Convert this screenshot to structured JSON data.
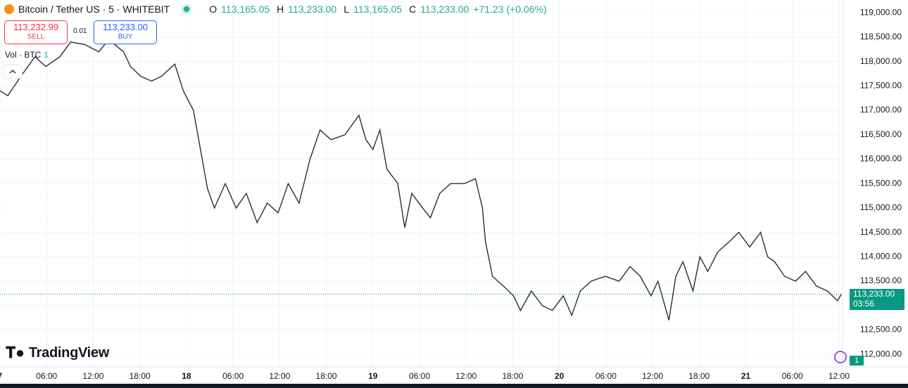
{
  "header": {
    "symbol": "Bitcoin / Tether US · 5 · WHITEBIT",
    "o_label": "O",
    "open": "113,165.05",
    "h_label": "H",
    "high": "113,233.00",
    "l_label": "L",
    "low": "113,165.05",
    "c_label": "C",
    "close": "113,233.00",
    "change": "+71.23 (+0.06%)"
  },
  "trade": {
    "sell_price": "113,232.99",
    "sell": "SELL",
    "spread": "0.01",
    "buy_price": "113,233.00",
    "buy": "BUY"
  },
  "volume": {
    "label": "Vol · BTC",
    "value": "1"
  },
  "brand": "TradingView",
  "badge": "1",
  "chart_data": {
    "type": "line",
    "x": [
      0,
      1,
      2.7,
      4.5,
      5.9,
      7.7,
      9.1,
      10.9,
      12.7,
      14,
      15.9,
      16.8,
      18.1,
      19.5,
      20.8,
      22.5,
      23.6,
      24.9,
      25.8,
      26.7,
      27.6,
      29,
      30.4,
      31.7,
      33.1,
      34.4,
      35.8,
      37.1,
      38.5,
      39.9,
      41.2,
      42.6,
      44.4,
      45.3,
      46.2,
      47.1,
      48,
      48.9,
      49.8,
      51.2,
      52.1,
      53,
      54.4,
      55.4,
      56.6,
      58,
      59.8,
      61.2,
      62.1,
      62.5,
      63.4,
      64.8,
      66.1,
      67,
      68.4,
      69.8,
      71.1,
      72.5,
      73.6,
      74.7,
      76.1,
      77.9,
      79.7,
      81.1,
      82.4,
      83.8,
      84.7,
      86.1,
      87,
      87.9,
      89.2,
      90.1,
      91.1,
      92.4,
      93.8,
      95.1,
      96.5,
      97.9,
      98.8,
      99.7,
      101,
      102.4,
      103.7,
      105.1,
      106.5,
      107.8,
      108.3
    ],
    "series": [
      {
        "color": "#2a2e39",
        "values": [
          117400,
          117300,
          117700,
          118100,
          117900,
          118100,
          118400,
          118350,
          118200,
          118450,
          118200,
          117900,
          117700,
          117600,
          117700,
          117950,
          117400,
          117000,
          116200,
          115400,
          115000,
          115500,
          115000,
          115300,
          114700,
          115100,
          114900,
          115500,
          115100,
          116000,
          116600,
          116400,
          116500,
          116700,
          116900,
          116400,
          116200,
          116600,
          115800,
          115500,
          114600,
          115300,
          115000,
          114800,
          115300,
          115500,
          115500,
          115600,
          115000,
          114300,
          113600,
          113400,
          113200,
          112900,
          113300,
          113000,
          112900,
          113200,
          112800,
          113300,
          113500,
          113600,
          113500,
          113800,
          113600,
          113200,
          113500,
          112700,
          113600,
          113900,
          113300,
          114000,
          113700,
          114100,
          114300,
          114500,
          114200,
          114500,
          114000,
          113900,
          113600,
          113500,
          113700,
          113400,
          113300,
          113100,
          113233
        ]
      }
    ],
    "xlim": [
      0,
      108.45
    ],
    "xticks": [
      {
        "value": 0,
        "label": "7"
      },
      {
        "value": 6,
        "label": "06:00"
      },
      {
        "value": 12,
        "label": "12:00"
      },
      {
        "value": 18,
        "label": "18:00"
      },
      {
        "value": 24,
        "label": "18"
      },
      {
        "value": 30,
        "label": "06:00"
      },
      {
        "value": 36,
        "label": "12:00"
      },
      {
        "value": 42,
        "label": "18:00"
      },
      {
        "value": 48,
        "label": "19"
      },
      {
        "value": 54,
        "label": "06:00"
      },
      {
        "value": 60,
        "label": "12:00"
      },
      {
        "value": 66,
        "label": "18:00"
      },
      {
        "value": 72,
        "label": "20"
      },
      {
        "value": 78,
        "label": "06:00"
      },
      {
        "value": 84,
        "label": "12:00"
      },
      {
        "value": 90,
        "label": "18:00"
      },
      {
        "value": 96,
        "label": "21"
      },
      {
        "value": 102,
        "label": "06:00"
      },
      {
        "value": 108,
        "label": "12:00"
      }
    ],
    "ylim": [
      111743,
      119262
    ],
    "yticks": [
      {
        "value": 112000,
        "label": "112,000.00"
      },
      {
        "value": 112500,
        "label": "112,500.00"
      },
      {
        "value": 113000,
        "label": "113,000.00"
      },
      {
        "value": 113500,
        "label": "113,500.00"
      },
      {
        "value": 114000,
        "label": "114,000.00"
      },
      {
        "value": 114500,
        "label": "114,500.00"
      },
      {
        "value": 115000,
        "label": "115,000.00"
      },
      {
        "value": 115500,
        "label": "115,500.00"
      },
      {
        "value": 116000,
        "label": "116,000.00"
      },
      {
        "value": 116500,
        "label": "116,500.00"
      },
      {
        "value": 117000,
        "label": "117,000.00"
      },
      {
        "value": 117500,
        "label": "117,500.00"
      },
      {
        "value": 118000,
        "label": "118,000.00"
      },
      {
        "value": 118500,
        "label": "118,500.00"
      },
      {
        "value": 119000,
        "label": "119,000.00"
      }
    ],
    "grid": true,
    "last_price": {
      "value": 113233,
      "label": "113,233.00"
    },
    "countdown": "03:56"
  }
}
